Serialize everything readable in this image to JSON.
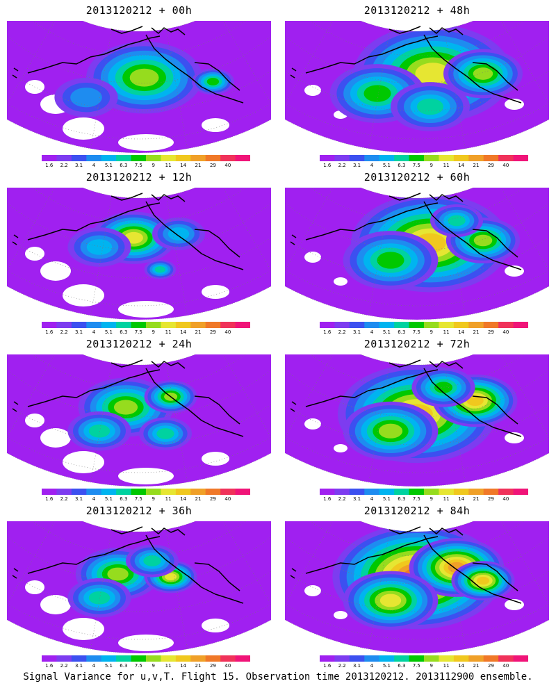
{
  "panels": [
    {
      "title": "2013120212 + 00h",
      "intensity": 0.05,
      "blobs": [
        [
          0.5,
          0.4,
          0.12,
          0.85
        ],
        [
          0.52,
          0.43,
          0.22,
          0.55
        ],
        [
          0.78,
          0.46,
          0.08,
          0.45
        ],
        [
          0.3,
          0.58,
          0.12,
          0.2
        ]
      ]
    },
    {
      "title": "2013120212 + 48h",
      "intensity": 0.55,
      "blobs": [
        [
          0.56,
          0.4,
          0.3,
          0.55
        ],
        [
          0.35,
          0.55,
          0.18,
          0.35
        ],
        [
          0.75,
          0.4,
          0.15,
          0.45
        ],
        [
          0.55,
          0.65,
          0.15,
          0.3
        ]
      ]
    },
    {
      "title": "2013120212 + 12h",
      "intensity": 0.2,
      "blobs": [
        [
          0.48,
          0.38,
          0.16,
          0.55
        ],
        [
          0.58,
          0.62,
          0.06,
          0.35
        ],
        [
          0.35,
          0.45,
          0.12,
          0.3
        ],
        [
          0.65,
          0.35,
          0.1,
          0.25
        ]
      ]
    },
    {
      "title": "2013120212 + 60h",
      "intensity": 0.62,
      "blobs": [
        [
          0.55,
          0.42,
          0.3,
          0.58
        ],
        [
          0.4,
          0.55,
          0.18,
          0.4
        ],
        [
          0.75,
          0.4,
          0.14,
          0.42
        ],
        [
          0.65,
          0.25,
          0.1,
          0.3
        ]
      ]
    },
    {
      "title": "2013120212 + 24h",
      "intensity": 0.38,
      "blobs": [
        [
          0.45,
          0.4,
          0.18,
          0.5
        ],
        [
          0.62,
          0.32,
          0.1,
          0.45
        ],
        [
          0.35,
          0.58,
          0.12,
          0.35
        ],
        [
          0.6,
          0.6,
          0.1,
          0.3
        ]
      ]
    },
    {
      "title": "2013120212 + 72h",
      "intensity": 0.72,
      "blobs": [
        [
          0.5,
          0.45,
          0.3,
          0.6
        ],
        [
          0.4,
          0.58,
          0.18,
          0.45
        ],
        [
          0.72,
          0.35,
          0.16,
          0.55
        ],
        [
          0.6,
          0.25,
          0.12,
          0.35
        ]
      ]
    },
    {
      "title": "2013120212 + 36h",
      "intensity": 0.45,
      "blobs": [
        [
          0.42,
          0.4,
          0.16,
          0.5
        ],
        [
          0.62,
          0.42,
          0.1,
          0.55
        ],
        [
          0.35,
          0.58,
          0.12,
          0.35
        ],
        [
          0.55,
          0.3,
          0.1,
          0.35
        ]
      ]
    },
    {
      "title": "2013120212 + 84h",
      "intensity": 0.85,
      "blobs": [
        [
          0.5,
          0.42,
          0.32,
          0.7
        ],
        [
          0.65,
          0.35,
          0.18,
          0.65
        ],
        [
          0.4,
          0.6,
          0.18,
          0.5
        ],
        [
          0.75,
          0.45,
          0.12,
          0.55
        ]
      ]
    }
  ],
  "colorbar": {
    "labels": [
      "1.6",
      "2.2",
      "3.1",
      "4",
      "5.1",
      "6.3",
      "7.5",
      "9",
      "11",
      "14",
      "21",
      "29",
      "40"
    ],
    "colors": [
      "#a020f0",
      "#7d3cf0",
      "#3c50f0",
      "#1e8cf0",
      "#00b4f0",
      "#00d2a0",
      "#00c800",
      "#96dc1e",
      "#e6e632",
      "#f0c81e",
      "#f0a028",
      "#f07828",
      "#f0325a",
      "#f01478"
    ]
  },
  "caption": "Signal Variance for u,v,T. Flight 15. Observation time 2013120212. 2013112900 ensemble."
}
